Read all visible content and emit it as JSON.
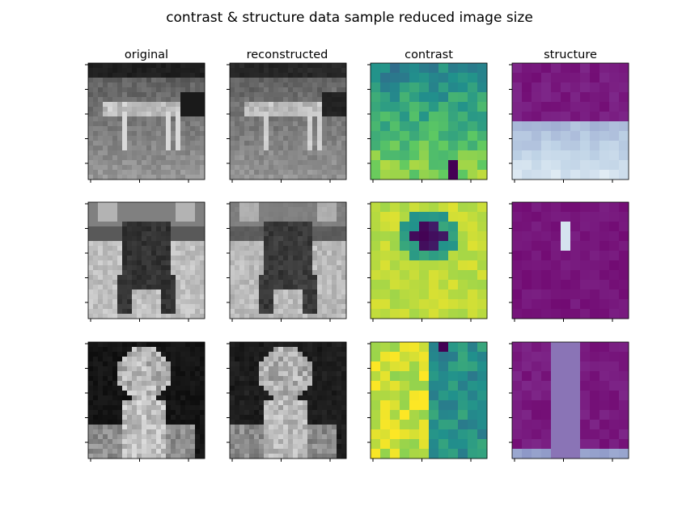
{
  "figure": {
    "title": "contrast & structure data sample reduced image size",
    "columns": [
      "original",
      "reconstructed",
      "contrast",
      "structure"
    ]
  },
  "chart_data": {
    "type": "heatmap",
    "title": "contrast & structure data sample reduced image size",
    "grid": false,
    "tick_labels": false,
    "layout": "3 rows x 4 columns",
    "columns": [
      {
        "name": "original",
        "colormap": "gray",
        "resolution": "24x24"
      },
      {
        "name": "reconstructed",
        "colormap": "gray",
        "resolution": "24x24"
      },
      {
        "name": "contrast",
        "colormap": "viridis",
        "resolution": "12x12"
      },
      {
        "name": "structure",
        "colormap": "BuPu",
        "resolution": "12x12"
      }
    ],
    "samples": [
      {
        "subject": "dog",
        "background": 0.45
      },
      {
        "subject": "bull",
        "background": 0.7
      },
      {
        "subject": "person",
        "background": 0.08
      }
    ]
  }
}
